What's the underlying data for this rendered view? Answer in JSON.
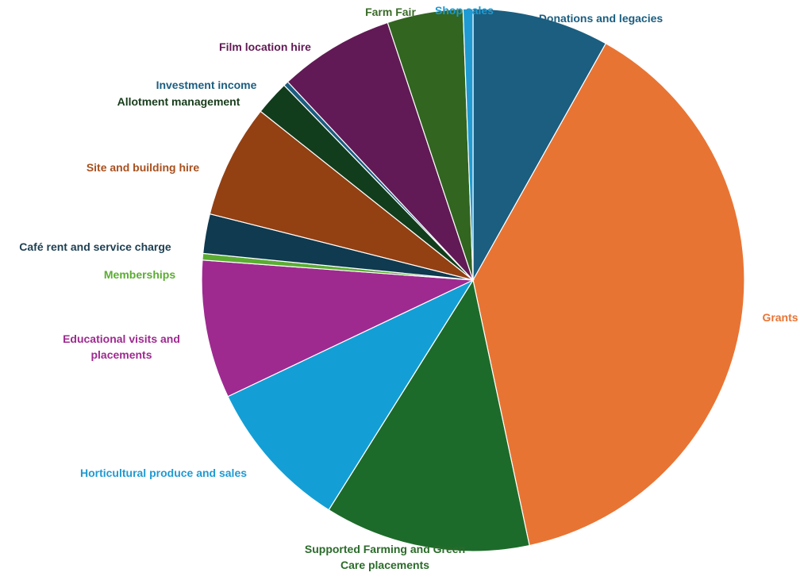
{
  "chart_data": {
    "type": "pie",
    "title": "",
    "slices": [
      {
        "label": "Donations and legacies",
        "lines": [
          "Donations and legacies"
        ],
        "value": 8.3,
        "color": "#1b5e80"
      },
      {
        "label": "Grants",
        "lines": [
          "Grants"
        ],
        "value": 39.3,
        "color": "#e87434"
      },
      {
        "label": "Supported Farming and Green Care placements",
        "lines": [
          "Supported Farming and Green",
          "Care placements"
        ],
        "value": 12.5,
        "color": "#1d6b2a"
      },
      {
        "label": "Horticultural produce and sales",
        "lines": [
          "Horticultural produce and sales"
        ],
        "value": 9.2,
        "color": "#139fd6"
      },
      {
        "label": "Educational visits and placements",
        "lines": [
          "Educational visits and",
          "placements"
        ],
        "value": 8.4,
        "color": "#9e2a90"
      },
      {
        "label": "Memberships",
        "lines": [
          "Memberships"
        ],
        "value": 0.4,
        "color": "#5aad32"
      },
      {
        "label": "Café rent and service charge",
        "lines": [
          "Café rent and service charge"
        ],
        "value": 2.4,
        "color": "#0f3a4f"
      },
      {
        "label": "Site and building hire",
        "lines": [
          "Site and building hire"
        ],
        "value": 6.9,
        "color": "#934013"
      },
      {
        "label": "Allotment management",
        "lines": [
          "Allotment management"
        ],
        "value": 2.1,
        "color": "#123d1c"
      },
      {
        "label": "Investment income",
        "lines": [
          "Investment income"
        ],
        "value": 0.3,
        "color": "#1b5e80"
      },
      {
        "label": "Film location hire",
        "lines": [
          "Film location hire"
        ],
        "value": 7.0,
        "color": "#611a55"
      },
      {
        "label": "Farm Fair",
        "lines": [
          "Farm Fair"
        ],
        "value": 4.6,
        "color": "#316520"
      },
      {
        "label": "Shop sales",
        "lines": [
          "Shop sales"
        ],
        "value": 0.6,
        "color": "#1f9ad2"
      }
    ]
  },
  "label_colors": {
    "Donations and legacies": "#1b5e80",
    "Grants": "#e87434",
    "Supported Farming and Green Care placements": "#2b6b2a",
    "Horticultural produce and sales": "#1f9ad2",
    "Educational visits and placements": "#9e2a90",
    "Memberships": "#5aad32",
    "Café rent and service charge": "#1d3f52",
    "Site and building hire": "#a8501e",
    "Allotment management": "#183c1c",
    "Investment income": "#1b5e80",
    "Film location hire": "#611a55",
    "Farm Fair": "#3a6b28",
    "Shop sales": "#1f9ad2"
  }
}
